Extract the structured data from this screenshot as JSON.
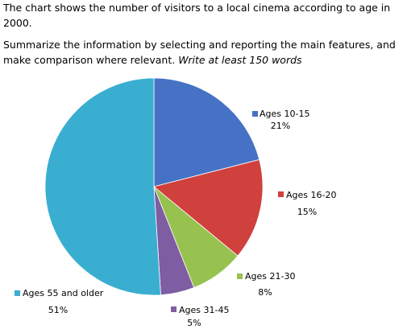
{
  "intro": {
    "line1": "The chart shows the number of visitors to a local cinema according to age in 2000.",
    "task": "Summarize the information by selecting and reporting the main features, and make comparison where relevant.",
    "emphasis": "Write at least 150 words"
  },
  "chart_data": {
    "type": "pie",
    "title": "",
    "categories": [
      "Ages 10-15",
      "Ages 16-20",
      "Ages 21-30",
      "Ages 31-45",
      "Ages 55 and older"
    ],
    "values": [
      21,
      15,
      8,
      5,
      51
    ],
    "value_labels": [
      "21%",
      "15%",
      "8%",
      "5%",
      "51%"
    ],
    "colors": [
      "#4572C4",
      "#D0403D",
      "#97C24F",
      "#7E5DA3",
      "#3AAED1"
    ],
    "start_angle": "12 o'clock, clockwise",
    "legend": "labels placed beside slices"
  }
}
